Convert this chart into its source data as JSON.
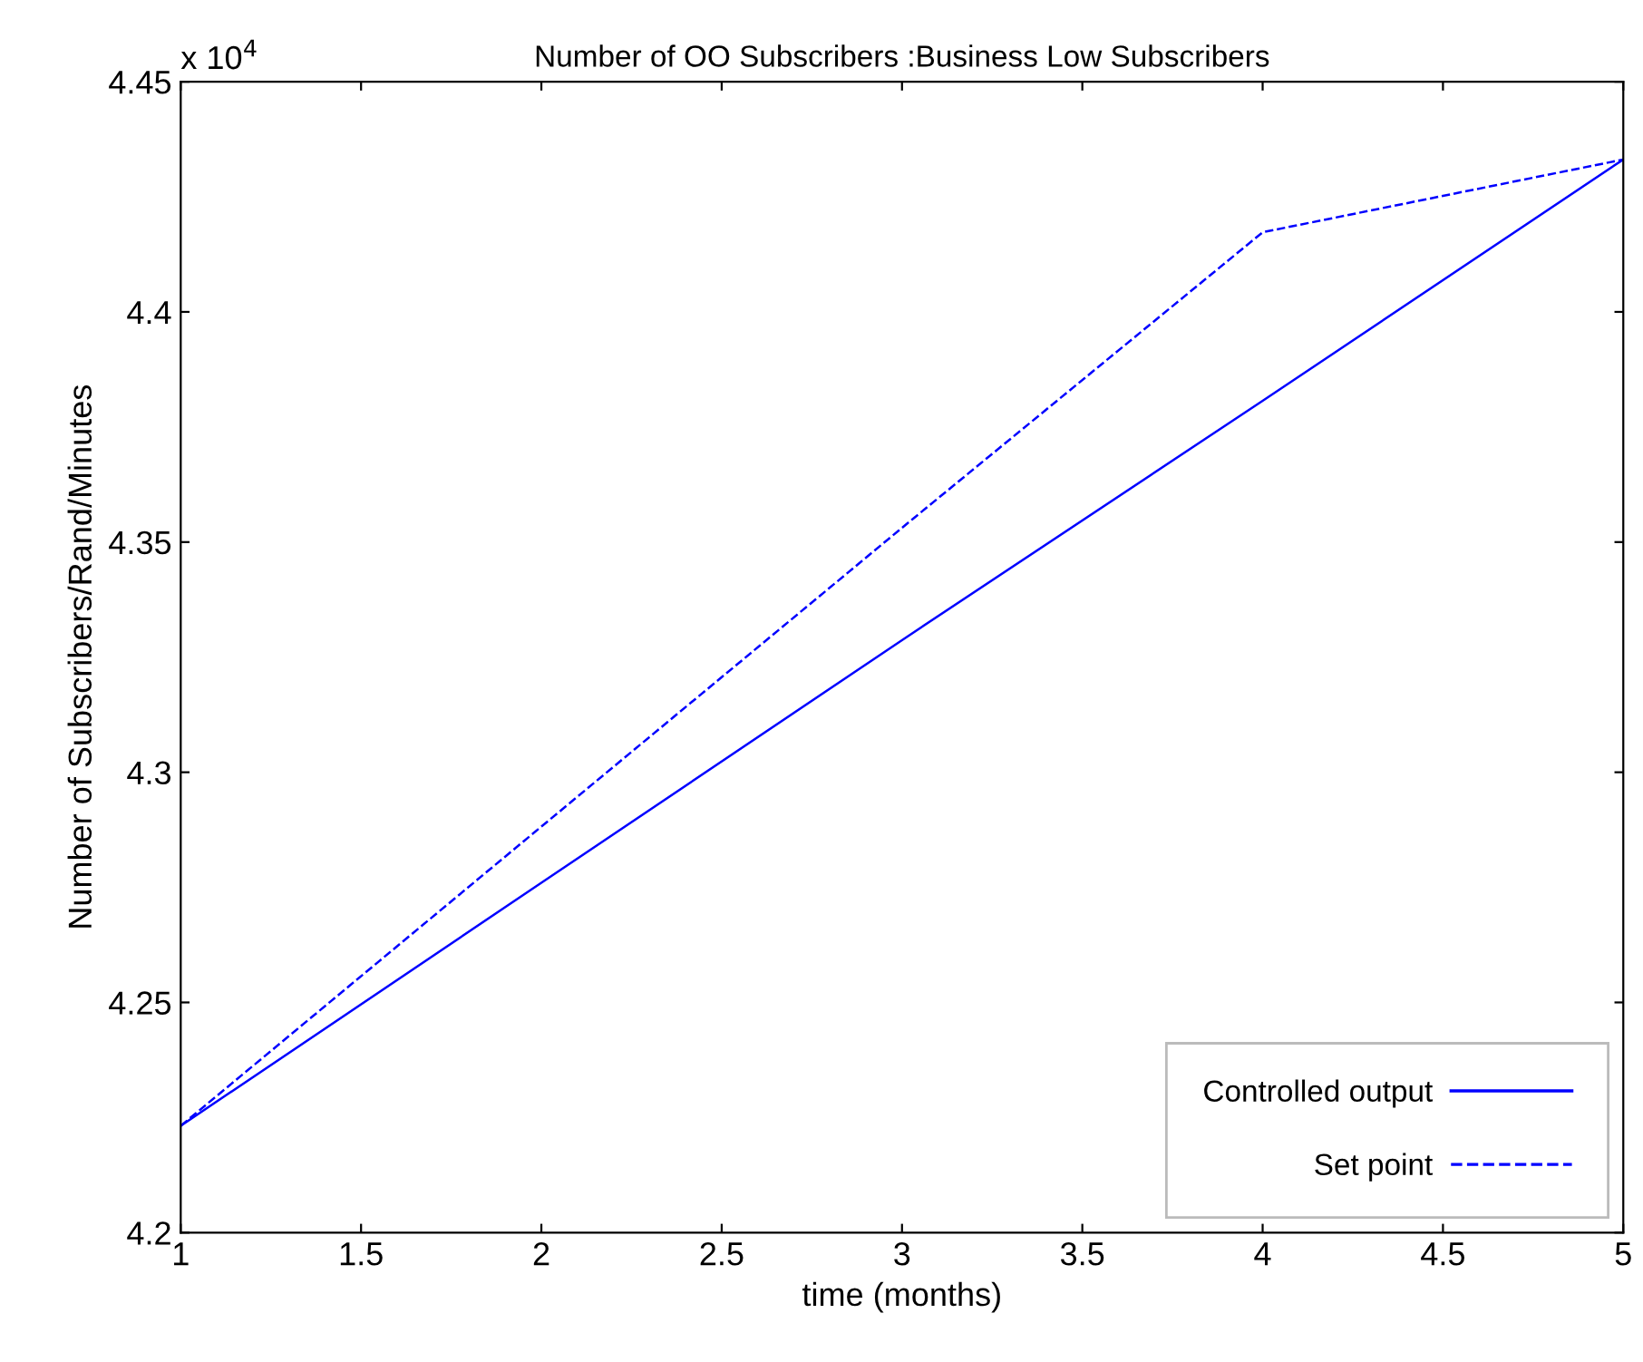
{
  "chart_data": {
    "type": "line",
    "title": "Number of OO Subscribers :Business Low Subscribers",
    "xlabel": "time (months)",
    "ylabel": "Number of Subscribers/Rand/Minutes",
    "annotations": [
      "x 10$^{4}$"
    ],
    "x": [
      1,
      2,
      3,
      4,
      5
    ],
    "series": [
      {
        "name": "Controlled output",
        "color": "#0000ff",
        "line_style": "solid",
        "values": [
          4.2232,
          4.276,
          4.3287,
          4.3807,
          4.4331
        ]
      },
      {
        "name": "Set point",
        "color": "#0000ff",
        "line_style": "dashed",
        "values": [
          4.2232,
          4.2882,
          4.3531,
          4.4173,
          4.4331
        ]
      }
    ],
    "xlim": [
      1,
      5
    ],
    "xticks": [
      1,
      1.5,
      2,
      2.5,
      3,
      3.5,
      4,
      4.5,
      5
    ],
    "ylim": [
      4.2,
      4.45
    ],
    "yticks": [
      4.2,
      4.25,
      4.3,
      4.35,
      4.4,
      4.45
    ],
    "grid": false,
    "legend": "lower right"
  }
}
